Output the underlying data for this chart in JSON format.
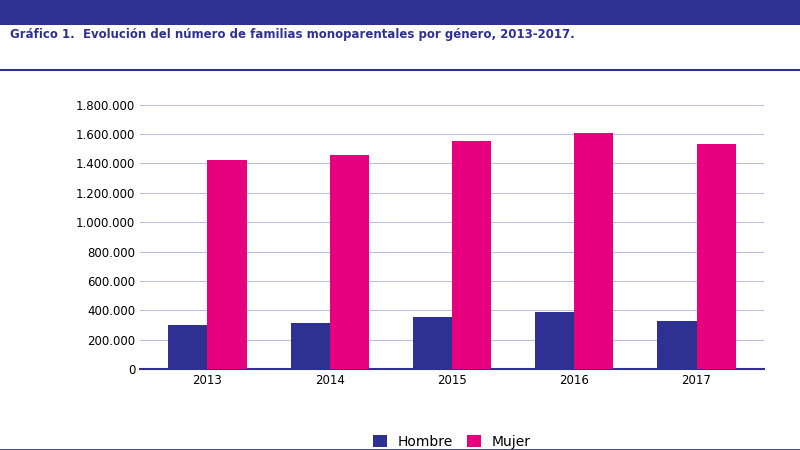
{
  "years": [
    "2013",
    "2014",
    "2015",
    "2016",
    "2017"
  ],
  "hombre": [
    300000,
    310000,
    355000,
    390000,
    325000
  ],
  "mujer": [
    1420000,
    1455000,
    1555000,
    1605000,
    1535000
  ],
  "bar_color_hombre": "#2e3192",
  "bar_color_mujer": "#e6007e",
  "ylim": [
    0,
    1900000
  ],
  "yticks": [
    0,
    200000,
    400000,
    600000,
    800000,
    1000000,
    1200000,
    1400000,
    1600000,
    1800000
  ],
  "grid_color": "#b8bcdc",
  "axis_color": "#2e3192",
  "title": "Gráfico 1.  Evolución del número de familias monoparentales por género, 2013-2017.",
  "title_color": "#2e3192",
  "title_fontsize": 8.5,
  "legend_labels": [
    "Hombre",
    "Mujer"
  ],
  "bar_width": 0.32,
  "background_color": "#ffffff",
  "tick_label_fontsize": 8.5,
  "header_line_color": "#2e3192",
  "bottom_line_color": "#2e3192"
}
